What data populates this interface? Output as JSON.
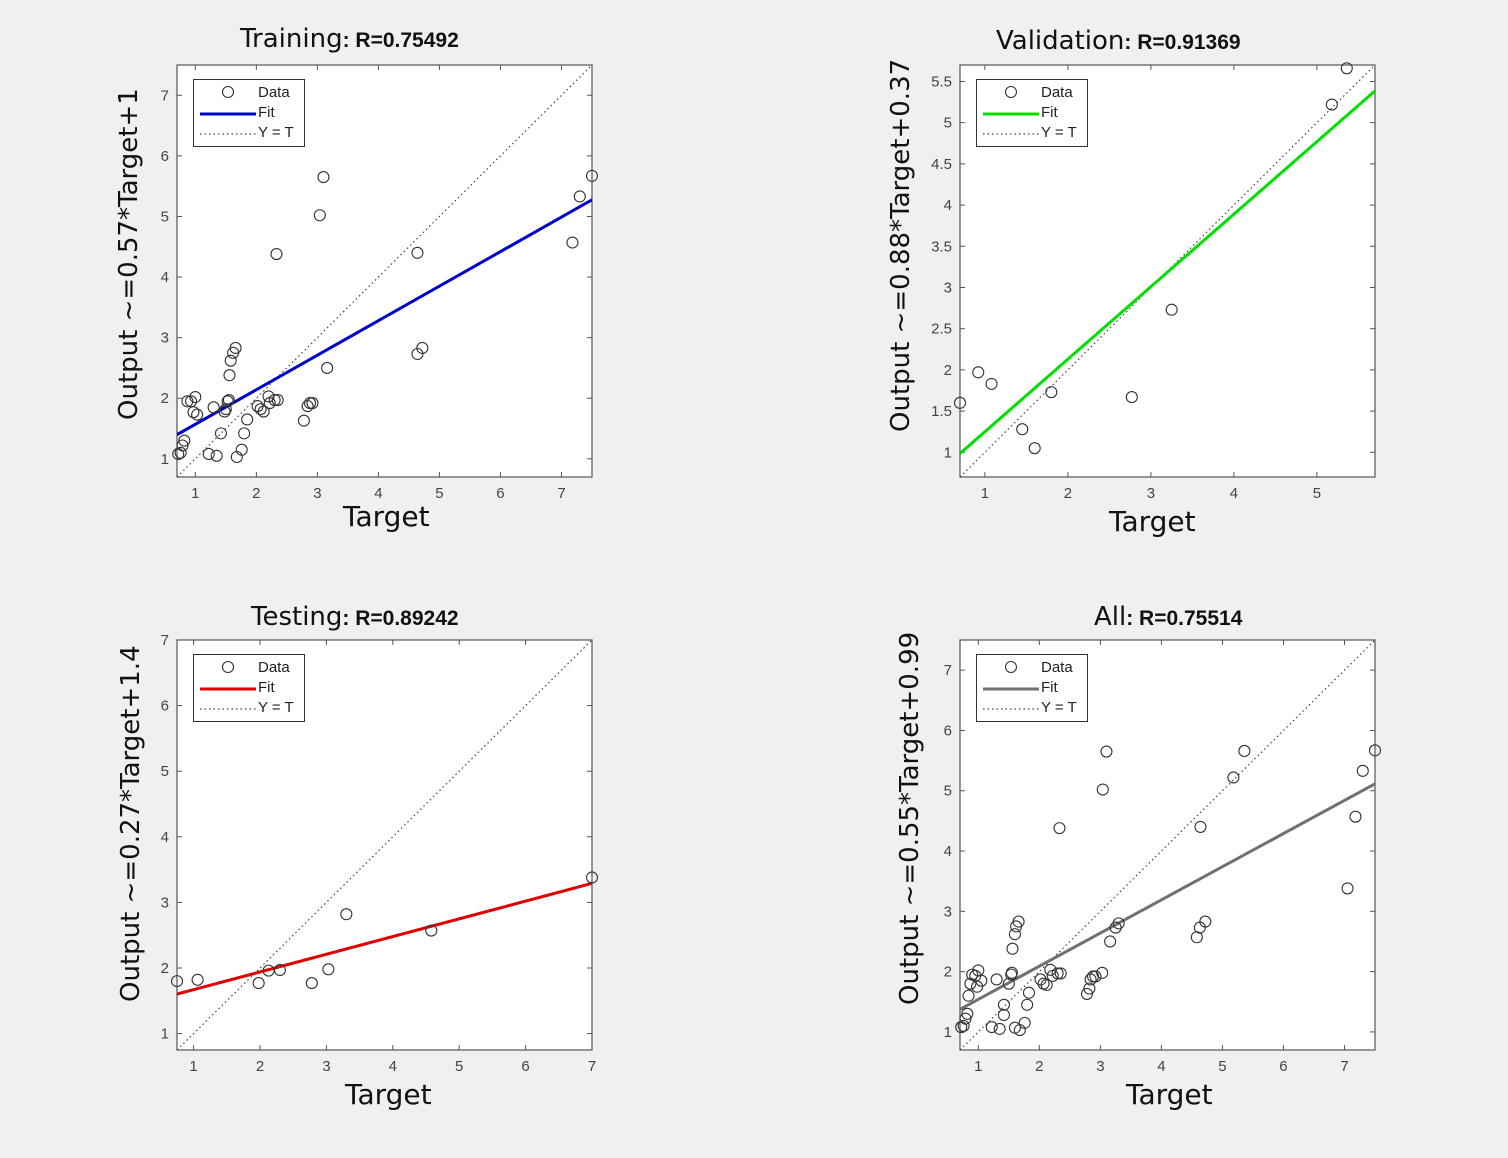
{
  "panels": [
    {
      "id": "training",
      "title": "Training",
      "r_label": ": R=0.75492",
      "xlabel": "Target",
      "ylabel": "Output ~=0.57*Target+1",
      "legend": [
        "Data",
        "Fit",
        "Y = T"
      ],
      "fit_color": "#0000cc",
      "chart_data": {
        "type": "scatter",
        "xlim": [
          0.7,
          7.5
        ],
        "ylim": [
          0.7,
          7.5
        ],
        "xticks": [
          "1",
          "2",
          "3",
          "4",
          "5",
          "6",
          "7"
        ],
        "yticks": [
          "1",
          "2",
          "3",
          "4",
          "5",
          "6",
          "7"
        ],
        "fit": {
          "slope": 0.57,
          "intercept": 1
        },
        "points": [
          [
            0.72,
            1.08
          ],
          [
            0.76,
            1.1
          ],
          [
            0.79,
            1.22
          ],
          [
            0.82,
            1.3
          ],
          [
            0.87,
            1.95
          ],
          [
            0.93,
            1.95
          ],
          [
            0.97,
            1.77
          ],
          [
            1.0,
            2.02
          ],
          [
            1.03,
            1.73
          ],
          [
            1.22,
            1.08
          ],
          [
            1.3,
            1.85
          ],
          [
            1.35,
            1.05
          ],
          [
            1.42,
            1.42
          ],
          [
            1.48,
            1.78
          ],
          [
            1.5,
            1.82
          ],
          [
            1.53,
            1.95
          ],
          [
            1.55,
            1.97
          ],
          [
            1.56,
            2.38
          ],
          [
            1.58,
            2.62
          ],
          [
            1.62,
            2.75
          ],
          [
            1.66,
            2.83
          ],
          [
            1.68,
            1.03
          ],
          [
            1.76,
            1.15
          ],
          [
            1.8,
            1.42
          ],
          [
            1.85,
            1.65
          ],
          [
            2.02,
            1.87
          ],
          [
            2.07,
            1.82
          ],
          [
            2.12,
            1.78
          ],
          [
            2.2,
            2.03
          ],
          [
            2.22,
            1.92
          ],
          [
            2.3,
            1.97
          ],
          [
            2.33,
            4.38
          ],
          [
            2.35,
            1.97
          ],
          [
            2.78,
            1.63
          ],
          [
            2.84,
            1.87
          ],
          [
            2.88,
            1.92
          ],
          [
            2.92,
            1.92
          ],
          [
            3.04,
            5.02
          ],
          [
            3.1,
            5.65
          ],
          [
            3.16,
            2.5
          ],
          [
            4.64,
            4.4
          ],
          [
            4.64,
            2.73
          ],
          [
            4.72,
            2.83
          ],
          [
            7.18,
            4.57
          ],
          [
            7.3,
            5.33
          ],
          [
            7.5,
            5.67
          ]
        ]
      }
    },
    {
      "id": "validation",
      "title": "Validation",
      "r_label": ": R=0.91369",
      "xlabel": "Target",
      "ylabel": "Output ~=0.88*Target+0.37",
      "legend": [
        "Data",
        "Fit",
        "Y = T"
      ],
      "fit_color": "#00e000",
      "chart_data": {
        "type": "scatter",
        "xlim": [
          0.7,
          5.7
        ],
        "ylim": [
          0.7,
          5.7
        ],
        "xticks": [
          "1",
          "2",
          "3",
          "4",
          "5"
        ],
        "yticks": [
          "1",
          "1.5",
          "2",
          "2.5",
          "3",
          "3.5",
          "4",
          "4.5",
          "5",
          "5.5"
        ],
        "fit": {
          "slope": 0.88,
          "intercept": 0.37
        },
        "points": [
          [
            0.7,
            1.6
          ],
          [
            0.92,
            1.97
          ],
          [
            1.08,
            1.83
          ],
          [
            1.45,
            1.28
          ],
          [
            1.6,
            1.05
          ],
          [
            1.8,
            1.73
          ],
          [
            2.77,
            1.67
          ],
          [
            3.25,
            2.73
          ],
          [
            5.18,
            5.22
          ],
          [
            5.36,
            5.66
          ]
        ]
      }
    },
    {
      "id": "testing",
      "title": "Testing",
      "r_label": ": R=0.89242",
      "xlabel": "Target",
      "ylabel": "Output ~=0.27*Target+1.4",
      "legend": [
        "Data",
        "Fit",
        "Y = T"
      ],
      "fit_color": "#e00000",
      "chart_data": {
        "type": "scatter",
        "xlim": [
          0.75,
          7.0
        ],
        "ylim": [
          0.75,
          7.0
        ],
        "xticks": [
          "1",
          "2",
          "3",
          "4",
          "5",
          "6",
          "7"
        ],
        "yticks": [
          "1",
          "2",
          "3",
          "4",
          "5",
          "6",
          "7"
        ],
        "fit": {
          "slope": 0.27,
          "intercept": 1.4
        },
        "points": [
          [
            0.75,
            1.8
          ],
          [
            1.06,
            1.82
          ],
          [
            1.98,
            1.77
          ],
          [
            2.13,
            1.96
          ],
          [
            2.3,
            1.97
          ],
          [
            2.78,
            1.77
          ],
          [
            3.03,
            1.98
          ],
          [
            3.3,
            2.82
          ],
          [
            4.58,
            2.57
          ],
          [
            7.0,
            3.38
          ]
        ]
      }
    },
    {
      "id": "all",
      "title": "All",
      "r_label": ": R=0.75514",
      "xlabel": "Target",
      "ylabel": "Output ~=0.55*Target+0.99",
      "legend": [
        "Data",
        "Fit",
        "Y = T"
      ],
      "fit_color": "#707070",
      "chart_data": {
        "type": "scatter",
        "xlim": [
          0.7,
          7.5
        ],
        "ylim": [
          0.7,
          7.5
        ],
        "xticks": [
          "1",
          "2",
          "3",
          "4",
          "5",
          "6",
          "7"
        ],
        "yticks": [
          "1",
          "2",
          "3",
          "4",
          "5",
          "6",
          "7"
        ],
        "fit": {
          "slope": 0.55,
          "intercept": 0.99
        },
        "points": [
          [
            0.72,
            1.08
          ],
          [
            0.76,
            1.1
          ],
          [
            0.79,
            1.22
          ],
          [
            0.82,
            1.3
          ],
          [
            0.84,
            1.6
          ],
          [
            0.87,
            1.8
          ],
          [
            0.9,
            1.95
          ],
          [
            0.95,
            1.93
          ],
          [
            0.98,
            1.75
          ],
          [
            1.0,
            2.02
          ],
          [
            1.05,
            1.85
          ],
          [
            1.22,
            1.08
          ],
          [
            1.3,
            1.87
          ],
          [
            1.35,
            1.05
          ],
          [
            1.42,
            1.45
          ],
          [
            1.42,
            1.28
          ],
          [
            1.5,
            1.8
          ],
          [
            1.54,
            1.95
          ],
          [
            1.55,
            1.98
          ],
          [
            1.56,
            2.38
          ],
          [
            1.6,
            2.62
          ],
          [
            1.62,
            2.75
          ],
          [
            1.66,
            2.83
          ],
          [
            1.6,
            1.07
          ],
          [
            1.68,
            1.03
          ],
          [
            1.76,
            1.15
          ],
          [
            1.8,
            1.45
          ],
          [
            1.83,
            1.65
          ],
          [
            2.02,
            1.87
          ],
          [
            2.07,
            1.8
          ],
          [
            2.12,
            1.78
          ],
          [
            2.18,
            2.03
          ],
          [
            2.22,
            1.93
          ],
          [
            2.3,
            1.97
          ],
          [
            2.33,
            4.38
          ],
          [
            2.35,
            1.97
          ],
          [
            2.78,
            1.63
          ],
          [
            2.82,
            1.72
          ],
          [
            2.84,
            1.87
          ],
          [
            2.88,
            1.92
          ],
          [
            2.92,
            1.92
          ],
          [
            3.03,
            1.98
          ],
          [
            3.04,
            5.02
          ],
          [
            3.1,
            5.65
          ],
          [
            3.16,
            2.5
          ],
          [
            3.25,
            2.73
          ],
          [
            3.3,
            2.8
          ],
          [
            4.58,
            2.57
          ],
          [
            4.63,
            2.73
          ],
          [
            4.64,
            4.4
          ],
          [
            4.72,
            2.83
          ],
          [
            5.18,
            5.22
          ],
          [
            5.36,
            5.66
          ],
          [
            7.05,
            3.38
          ],
          [
            7.18,
            4.57
          ],
          [
            7.3,
            5.33
          ],
          [
            7.5,
            5.67
          ]
        ]
      }
    }
  ]
}
